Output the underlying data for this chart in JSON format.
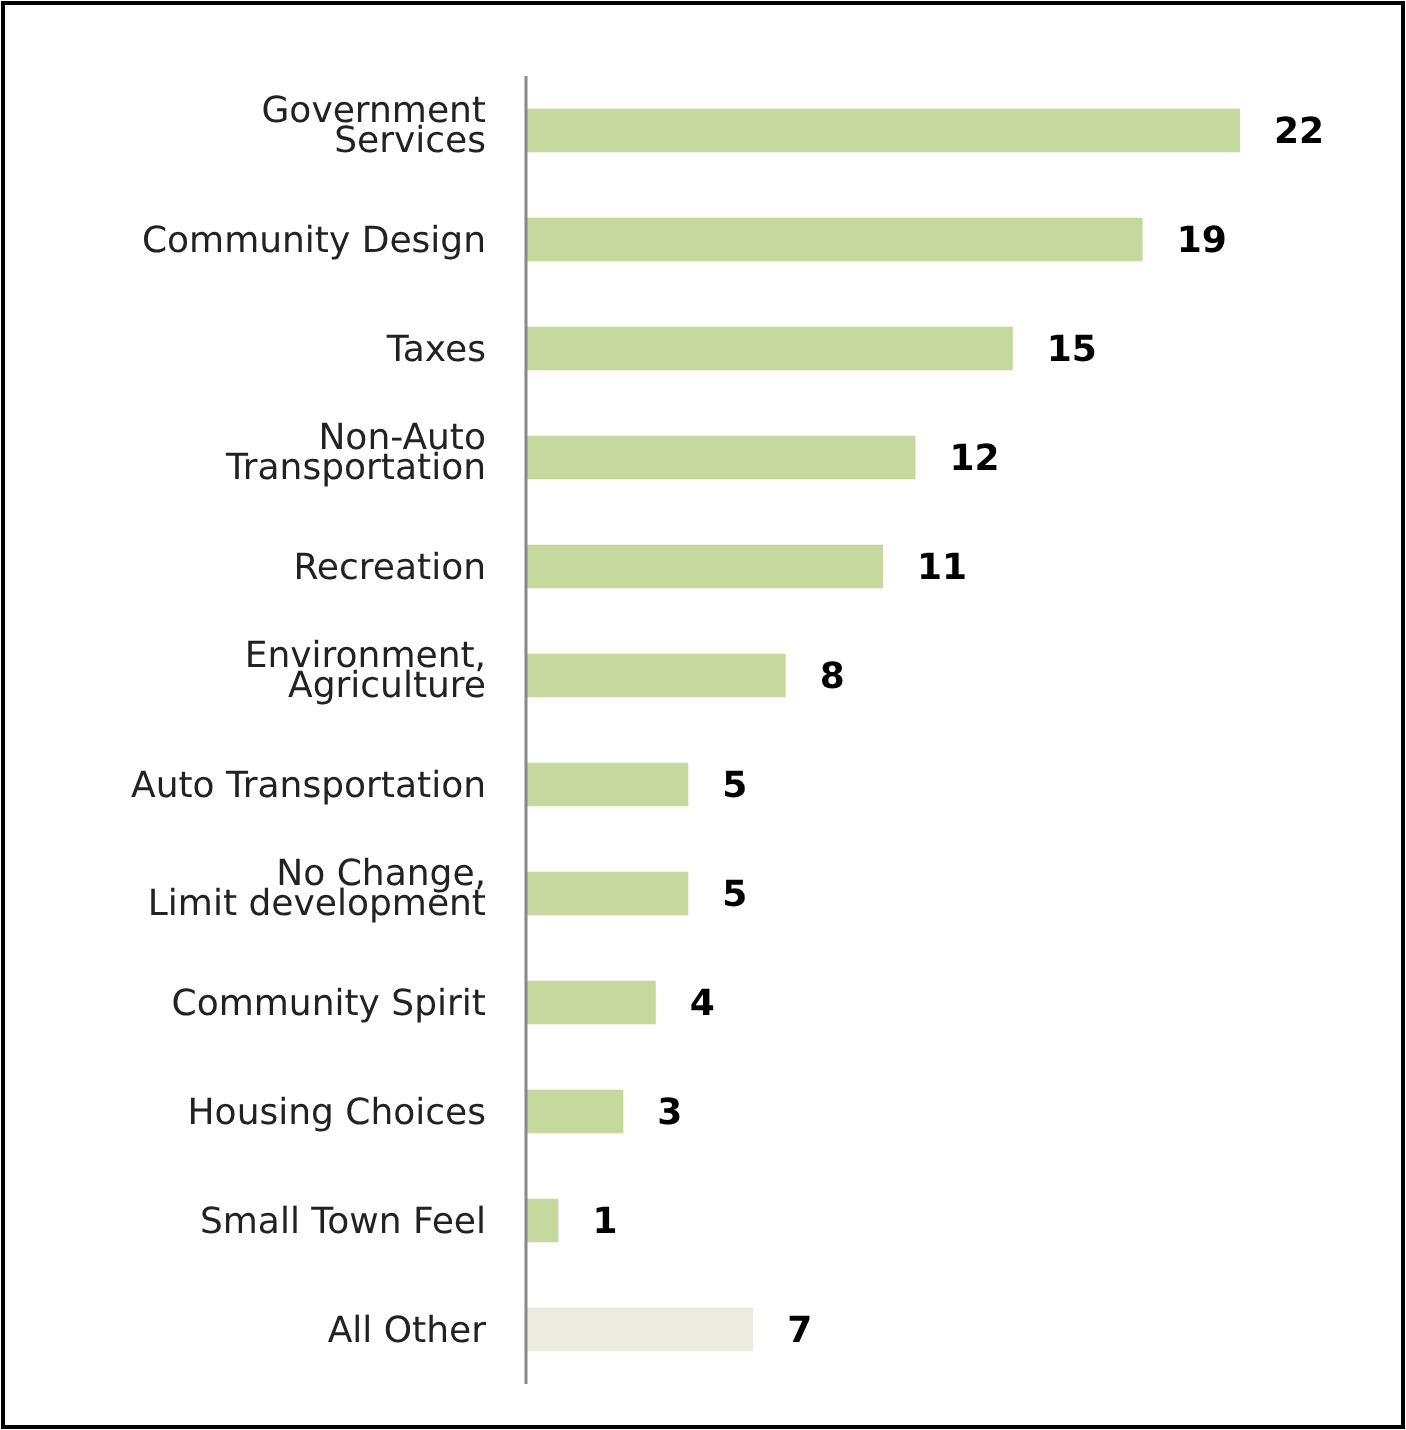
{
  "chart_data": {
    "type": "bar",
    "orientation": "horizontal",
    "data_labels": true,
    "categories": [
      "Government\nServices",
      "Community Design",
      "Taxes",
      "Non-Auto\nTransportation",
      "Recreation",
      "Environment,\nAgriculture",
      "Auto Transportation",
      "No Change,\nLimit development",
      "Community Spirit",
      "Housing Choices",
      "Small Town Feel",
      "All Other"
    ],
    "values": [
      22,
      19,
      15,
      12,
      11,
      8,
      5,
      5,
      4,
      3,
      1,
      7
    ],
    "colors": [
      "#c5d99e",
      "#c5d99e",
      "#c5d99e",
      "#c5d99e",
      "#c5d99e",
      "#c5d99e",
      "#c5d99e",
      "#c5d99e",
      "#c5d99e",
      "#c5d99e",
      "#c5d99e",
      "#ecebe0"
    ]
  }
}
